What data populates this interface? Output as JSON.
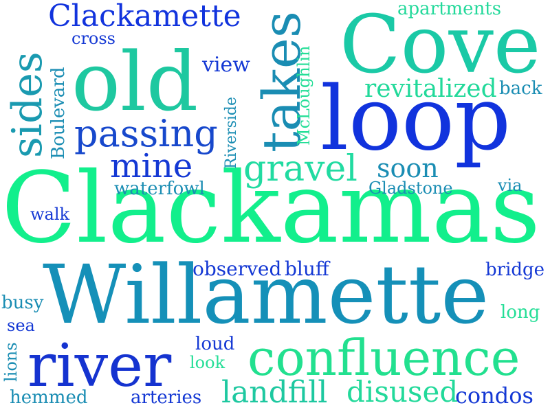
{
  "words": {
    "clackamas": "Clackamas",
    "willamette": "Willamette",
    "cove": "Cove",
    "loop": "loop",
    "old": "old",
    "river": "river",
    "confluence": "confluence",
    "clackamette": "Clackamette",
    "takes": "takes",
    "sides": "sides",
    "passing": "passing",
    "gravel": "gravel",
    "mine": "mine",
    "revitalized": "revitalized",
    "disused": "disused",
    "landfill": "landfill",
    "condos": "condos",
    "soon": "soon",
    "apartments": "apartments",
    "cross": "cross",
    "view": "view",
    "back": "back",
    "mcloughlin": "McLoughlin",
    "boulevard": "Boulevard",
    "riverside": "Riverside",
    "waterfowl": "waterfowl",
    "gladstone": "Gladstone",
    "via": "via",
    "walk": "walk",
    "observed": "observed",
    "bluff": "bluff",
    "bridge": "bridge",
    "busy": "busy",
    "long": "long",
    "sea": "sea",
    "loud": "loud",
    "look": "look",
    "lions": "lions",
    "hemmed": "hemmed",
    "arteries": "arteries"
  },
  "palette": {
    "blue": "#1133dd",
    "mid_blue": "#1a6fc4",
    "teal": "#1596b0",
    "green": "#19c9a0",
    "mint": "#22e08f",
    "bright_green": "#11f08a"
  }
}
